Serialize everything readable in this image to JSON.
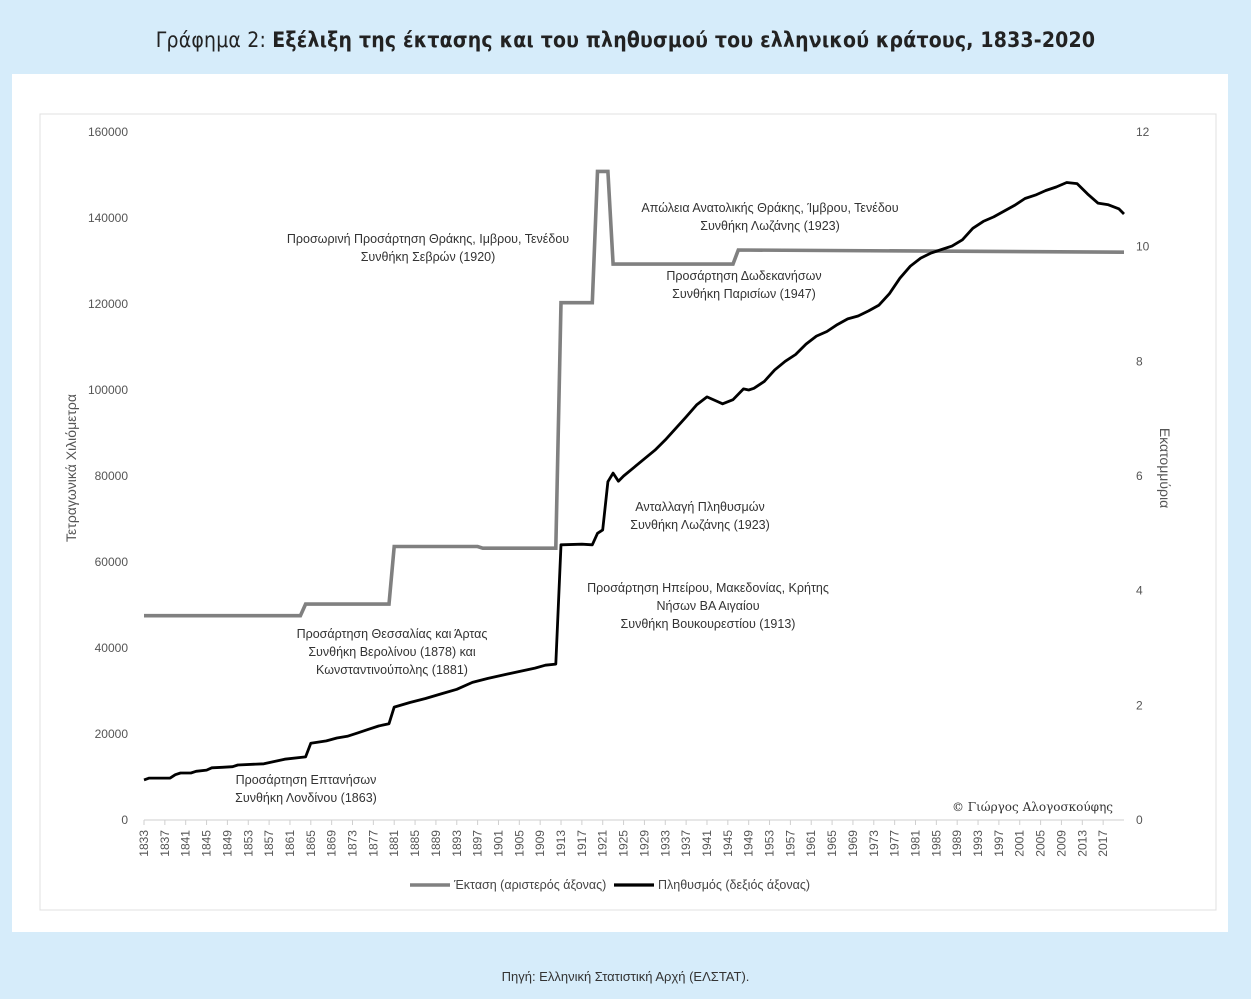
{
  "header": {
    "prefix": "Γράφημα 2: ",
    "title": "Εξέλιξη της έκτασης και του πληθυσμού του ελληνικού κράτους, 1833-2020"
  },
  "footer": {
    "source": "Πηγή: Ελληνική Στατιστική Αρχή (ΕΛΣΤΑΤ)."
  },
  "colors": {
    "background": "#d6ecfa",
    "area": "#808080",
    "population": "#000000"
  },
  "chart_data": {
    "type": "line",
    "ylabel_left": "Τετραγωνικά Χιλιόμετρα",
    "ylabel_right": "Εκατομμύρια",
    "ylim_left": [
      0,
      160000
    ],
    "ylim_right": [
      0,
      12
    ],
    "yticks_left": [
      0,
      20000,
      40000,
      60000,
      80000,
      100000,
      120000,
      140000,
      160000
    ],
    "yticks_right": [
      0,
      2,
      4,
      6,
      8,
      10,
      12
    ],
    "xlim": [
      1833,
      2021
    ],
    "xtick_start": 1833,
    "xtick_end": 2017,
    "xtick_step": 4,
    "grid": false,
    "legend_position": "bottom",
    "series": [
      {
        "name": "Έκταση (αριστερός άξονας)",
        "axis": "left",
        "points": [
          [
            1833,
            47516
          ],
          [
            1863,
            47516
          ],
          [
            1864,
            50211
          ],
          [
            1880,
            50211
          ],
          [
            1881,
            63606
          ],
          [
            1897,
            63606
          ],
          [
            1898,
            63211
          ],
          [
            1911,
            63211
          ],
          [
            1912,
            63211
          ],
          [
            1913,
            120308
          ],
          [
            1919,
            120308
          ],
          [
            1920,
            150833
          ],
          [
            1922,
            150833
          ],
          [
            1923,
            129281
          ],
          [
            1946,
            129281
          ],
          [
            1947,
            132562
          ],
          [
            2021,
            132049
          ]
        ]
      },
      {
        "name": "Πληθυσμός (δεξιός άξονας)",
        "axis": "right",
        "points": [
          [
            1833,
            0.7
          ],
          [
            1834,
            0.73
          ],
          [
            1835,
            0.73
          ],
          [
            1838,
            0.73
          ],
          [
            1839,
            0.79
          ],
          [
            1840,
            0.82
          ],
          [
            1842,
            0.82
          ],
          [
            1843,
            0.85
          ],
          [
            1845,
            0.87
          ],
          [
            1846,
            0.91
          ],
          [
            1848,
            0.92
          ],
          [
            1850,
            0.93
          ],
          [
            1851,
            0.96
          ],
          [
            1856,
            0.98
          ],
          [
            1860,
            1.06
          ],
          [
            1864,
            1.1
          ],
          [
            1865,
            1.34
          ],
          [
            1868,
            1.38
          ],
          [
            1870,
            1.43
          ],
          [
            1872,
            1.46
          ],
          [
            1874,
            1.52
          ],
          [
            1876,
            1.58
          ],
          [
            1878,
            1.64
          ],
          [
            1880,
            1.68
          ],
          [
            1881,
            1.97
          ],
          [
            1884,
            2.05
          ],
          [
            1887,
            2.12
          ],
          [
            1890,
            2.2
          ],
          [
            1893,
            2.28
          ],
          [
            1896,
            2.4
          ],
          [
            1899,
            2.47
          ],
          [
            1902,
            2.53
          ],
          [
            1905,
            2.59
          ],
          [
            1908,
            2.65
          ],
          [
            1910,
            2.7
          ],
          [
            1912,
            2.72
          ],
          [
            1913,
            4.8
          ],
          [
            1917,
            4.81
          ],
          [
            1919,
            4.8
          ],
          [
            1920,
            5.0
          ],
          [
            1921,
            5.06
          ],
          [
            1922,
            5.9
          ],
          [
            1923,
            6.05
          ],
          [
            1924,
            5.91
          ],
          [
            1925,
            6.0
          ],
          [
            1927,
            6.15
          ],
          [
            1929,
            6.3
          ],
          [
            1931,
            6.45
          ],
          [
            1933,
            6.63
          ],
          [
            1935,
            6.83
          ],
          [
            1937,
            7.03
          ],
          [
            1939,
            7.24
          ],
          [
            1941,
            7.38
          ],
          [
            1943,
            7.3
          ],
          [
            1944,
            7.26
          ],
          [
            1946,
            7.33
          ],
          [
            1948,
            7.52
          ],
          [
            1949,
            7.5
          ],
          [
            1950,
            7.53
          ],
          [
            1952,
            7.65
          ],
          [
            1954,
            7.85
          ],
          [
            1956,
            8.0
          ],
          [
            1958,
            8.12
          ],
          [
            1960,
            8.3
          ],
          [
            1962,
            8.44
          ],
          [
            1964,
            8.52
          ],
          [
            1966,
            8.64
          ],
          [
            1968,
            8.74
          ],
          [
            1970,
            8.79
          ],
          [
            1972,
            8.88
          ],
          [
            1974,
            8.98
          ],
          [
            1976,
            9.18
          ],
          [
            1978,
            9.45
          ],
          [
            1980,
            9.66
          ],
          [
            1982,
            9.8
          ],
          [
            1984,
            9.89
          ],
          [
            1986,
            9.95
          ],
          [
            1988,
            10.01
          ],
          [
            1990,
            10.12
          ],
          [
            1992,
            10.32
          ],
          [
            1994,
            10.44
          ],
          [
            1996,
            10.52
          ],
          [
            1998,
            10.62
          ],
          [
            2000,
            10.72
          ],
          [
            2002,
            10.84
          ],
          [
            2004,
            10.9
          ],
          [
            2006,
            10.98
          ],
          [
            2008,
            11.04
          ],
          [
            2010,
            11.12
          ],
          [
            2012,
            11.1
          ],
          [
            2014,
            10.92
          ],
          [
            2016,
            10.76
          ],
          [
            2018,
            10.73
          ],
          [
            2020,
            10.66
          ],
          [
            2021,
            10.57
          ]
        ]
      }
    ],
    "annotations": [
      {
        "lines": [
          "Προσάρτηση Επτανήσων",
          "Συνθήκη Λονδίνου (1863)"
        ]
      },
      {
        "lines": [
          "Προσάρτηση Θεσσαλίας και Άρτας",
          "Συνθήκη Βερολίνου (1878) και",
          "Κωνσταντινούπολης (1881)"
        ]
      },
      {
        "lines": [
          "Προσωρινή Προσάρτηση Θράκης, Ιμβρου, Τενέδου",
          "Συνθήκη Σεβρών (1920)"
        ]
      },
      {
        "lines": [
          "Απώλεια Ανατολικής Θράκης, Ίμβρου, Τενέδου",
          "Συνθήκη Λωζάνης (1923)"
        ]
      },
      {
        "lines": [
          "Προσάρτηση Δωδεκανήσων",
          "Συνθήκη Παρισίων (1947)"
        ]
      },
      {
        "lines": [
          "Ανταλλαγή Πληθυσμών",
          "Συνθήκη Λωζάνης (1923)"
        ]
      },
      {
        "lines": [
          "Προσάρτηση Ηπείρου, Μακεδονίας, Κρήτης",
          "Νήσων ΒΑ Αιγαίου",
          "Συνθήκη Βουκουρεστίου (1913)"
        ]
      }
    ],
    "copyright": "© Γιώργος Αλογοσκούφης"
  }
}
